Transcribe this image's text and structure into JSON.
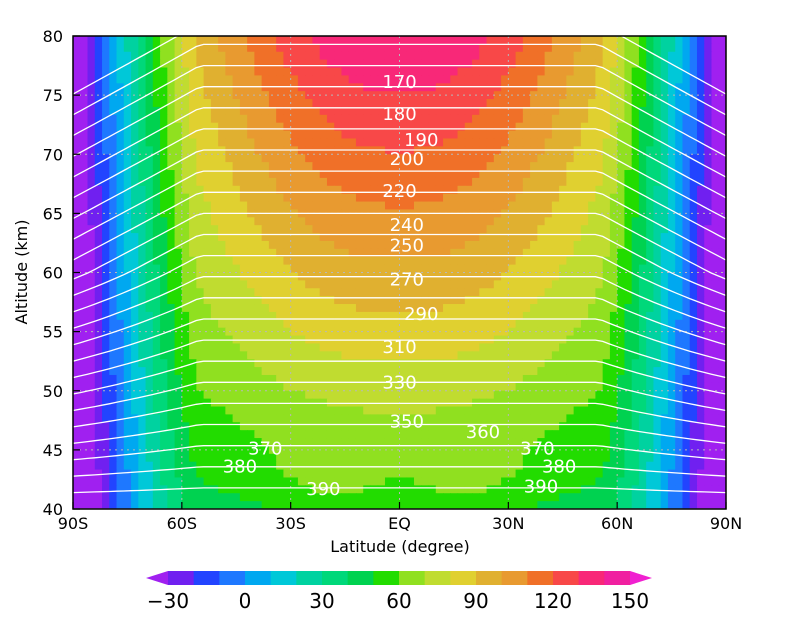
{
  "chart_data": {
    "type": "heatmap",
    "title": "",
    "xlabel": "Latitude (degree)",
    "ylabel": "Altitude (km)",
    "xlim": [
      -90,
      90
    ],
    "ylim": [
      40,
      80
    ],
    "grid": true,
    "x_ticks": [
      {
        "value": -90,
        "label": "90S"
      },
      {
        "value": -60,
        "label": "60S"
      },
      {
        "value": -30,
        "label": "30S"
      },
      {
        "value": 0,
        "label": "EQ"
      },
      {
        "value": 30,
        "label": "30N"
      },
      {
        "value": 60,
        "label": "60N"
      },
      {
        "value": 90,
        "label": "90N"
      }
    ],
    "y_ticks": [
      {
        "value": 40,
        "label": "40"
      },
      {
        "value": 45,
        "label": "45"
      },
      {
        "value": 50,
        "label": "50"
      },
      {
        "value": 55,
        "label": "55"
      },
      {
        "value": 60,
        "label": "60"
      },
      {
        "value": 65,
        "label": "65"
      },
      {
        "value": 70,
        "label": "70"
      },
      {
        "value": 75,
        "label": "75"
      },
      {
        "value": 80,
        "label": "80"
      }
    ],
    "colorbar": {
      "levels": [
        -30,
        -20,
        -10,
        0,
        10,
        20,
        30,
        40,
        50,
        60,
        70,
        80,
        90,
        100,
        110,
        120,
        130,
        140,
        150
      ],
      "colors": [
        "#a020f0",
        "#7020f0",
        "#2244ff",
        "#1e78ff",
        "#00a8f0",
        "#00c8d8",
        "#00d2a0",
        "#00d87a",
        "#00d250",
        "#22dc00",
        "#90e020",
        "#c0dc30",
        "#e0d030",
        "#e0b030",
        "#e89a30",
        "#f07028",
        "#f84848",
        "#f82878",
        "#f020a0",
        "#f020d0"
      ],
      "tick_labels": [
        {
          "value": -30,
          "label": "−30"
        },
        {
          "value": 0,
          "label": "0"
        },
        {
          "value": 30,
          "label": "30"
        },
        {
          "value": 60,
          "label": "60"
        },
        {
          "value": 90,
          "label": "90"
        },
        {
          "value": 120,
          "label": "120"
        },
        {
          "value": 150,
          "label": "150"
        }
      ]
    },
    "contour_levels": [
      170,
      180,
      190,
      200,
      210,
      220,
      230,
      240,
      250,
      260,
      270,
      280,
      290,
      300,
      310,
      320,
      330,
      340,
      350,
      360,
      370,
      380,
      390,
      400
    ],
    "contour_labels": [
      {
        "text": "170",
        "lat": 0,
        "alt": 76.1
      },
      {
        "text": "180",
        "lat": 0,
        "alt": 73.4
      },
      {
        "text": "190",
        "lat": 6,
        "alt": 71.2
      },
      {
        "text": "200",
        "lat": 2,
        "alt": 69.6
      },
      {
        "text": "220",
        "lat": 0,
        "alt": 66.9
      },
      {
        "text": "240",
        "lat": 2,
        "alt": 64.0
      },
      {
        "text": "250",
        "lat": 2,
        "alt": 62.3
      },
      {
        "text": "270",
        "lat": 2,
        "alt": 59.4
      },
      {
        "text": "290",
        "lat": 6,
        "alt": 56.5
      },
      {
        "text": "310",
        "lat": 0,
        "alt": 53.7
      },
      {
        "text": "330",
        "lat": 0,
        "alt": 50.7
      },
      {
        "text": "350",
        "lat": 2,
        "alt": 47.4
      },
      {
        "text": "360",
        "lat": 23,
        "alt": 46.5
      },
      {
        "text": "370",
        "lat": -37,
        "alt": 45.1
      },
      {
        "text": "370",
        "lat": 38,
        "alt": 45.1
      },
      {
        "text": "380",
        "lat": -44,
        "alt": 43.6
      },
      {
        "text": "380",
        "lat": 44,
        "alt": 43.6
      },
      {
        "text": "390",
        "lat": -21,
        "alt": 41.7
      },
      {
        "text": "390",
        "lat": 39,
        "alt": 41.9
      }
    ]
  }
}
